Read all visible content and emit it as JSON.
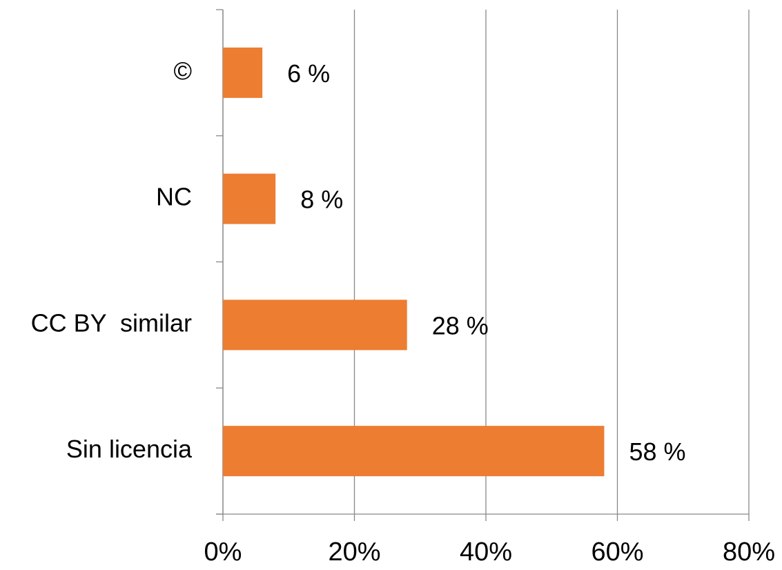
{
  "chart_data": {
    "type": "barh",
    "categories": [
      "©",
      "NC",
      "CC BY  similar",
      "Sin licencia"
    ],
    "values": [
      6,
      8,
      28,
      58
    ],
    "value_labels": [
      "6 %",
      "8 %",
      "28 %",
      "58 %"
    ],
    "color": "#ed7d31",
    "xlim": [
      0,
      80
    ],
    "xticks": [
      {
        "value": 0,
        "label": "0%"
      },
      {
        "value": 20,
        "label": "20%"
      },
      {
        "value": 40,
        "label": "40%"
      },
      {
        "value": 60,
        "label": "60%"
      },
      {
        "value": 80,
        "label": "80%"
      }
    ],
    "grid": true
  }
}
